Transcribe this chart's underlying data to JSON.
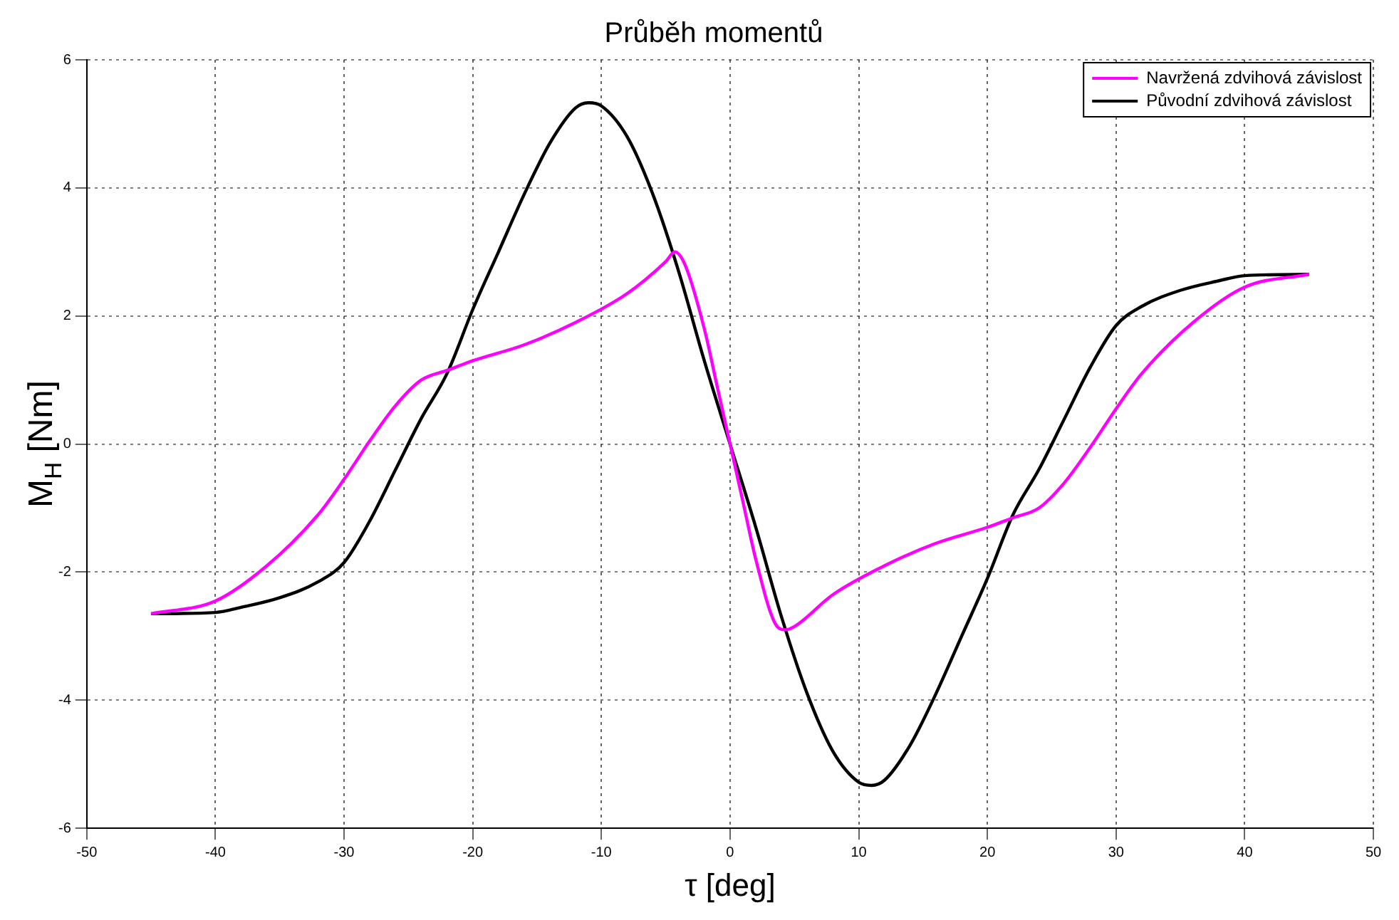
{
  "chart_data": {
    "type": "line",
    "title": "Průběh momentů",
    "xlabel": "τ [deg]",
    "ylabel": "M$_{H}$ [Nm]",
    "xlim": [
      -50,
      50
    ],
    "xticks": [
      -50,
      -40,
      -30,
      -20,
      -10,
      0,
      10,
      20,
      30,
      40,
      50
    ],
    "ylim": [
      -6,
      6
    ],
    "yticks": [
      -6,
      -4,
      -2,
      0,
      2,
      4,
      6
    ],
    "grid": true,
    "legend": "top right",
    "marker": "none",
    "line_style": "solid",
    "series": [
      {
        "name": "Navržená zdvihová závislost",
        "color": "#ff00ff",
        "x": [
          -45,
          -40,
          -36,
          -32,
          -30,
          -28,
          -26,
          -24,
          -22,
          -20,
          -16,
          -12,
          -8,
          -5,
          -4.3,
          -3.5,
          -2,
          -1,
          0,
          1,
          2,
          3.5,
          4.3,
          5,
          8,
          12,
          16,
          20,
          22,
          24,
          26,
          28,
          30,
          32,
          36,
          40,
          45
        ],
        "values": [
          -2.65,
          -2.45,
          -1.9,
          -1.1,
          -0.55,
          0.05,
          0.6,
          1.0,
          1.15,
          1.3,
          1.55,
          1.9,
          2.35,
          2.85,
          3.0,
          2.8,
          1.8,
          0.9,
          0,
          -0.9,
          -1.8,
          -2.8,
          -2.9,
          -2.85,
          -2.35,
          -1.9,
          -1.55,
          -1.3,
          -1.15,
          -1.0,
          -0.6,
          -0.05,
          0.55,
          1.1,
          1.9,
          2.45,
          2.65
        ]
      },
      {
        "name": "Původní zdvihová závislost",
        "color": "#000000",
        "x": [
          -45,
          -40,
          -38,
          -35,
          -32,
          -30,
          -28,
          -26,
          -24,
          -22,
          -20,
          -18,
          -16,
          -14,
          -12,
          -11,
          -10,
          -8,
          -6,
          -4,
          -2,
          0,
          2,
          4,
          6,
          8,
          10,
          11,
          12,
          14,
          16,
          18,
          20,
          22,
          24,
          26,
          28,
          30,
          32,
          35,
          38,
          40,
          45
        ],
        "values": [
          -2.65,
          -2.63,
          -2.55,
          -2.4,
          -2.15,
          -1.85,
          -1.2,
          -0.4,
          0.4,
          1.1,
          2.1,
          3.0,
          3.9,
          4.7,
          5.25,
          5.33,
          5.28,
          4.8,
          3.9,
          2.7,
          1.3,
          0,
          -1.3,
          -2.7,
          -3.9,
          -4.8,
          -5.28,
          -5.33,
          -5.25,
          -4.7,
          -3.9,
          -3.0,
          -2.1,
          -1.1,
          -0.4,
          0.4,
          1.2,
          1.85,
          2.15,
          2.4,
          2.55,
          2.63,
          2.65
        ]
      }
    ]
  }
}
